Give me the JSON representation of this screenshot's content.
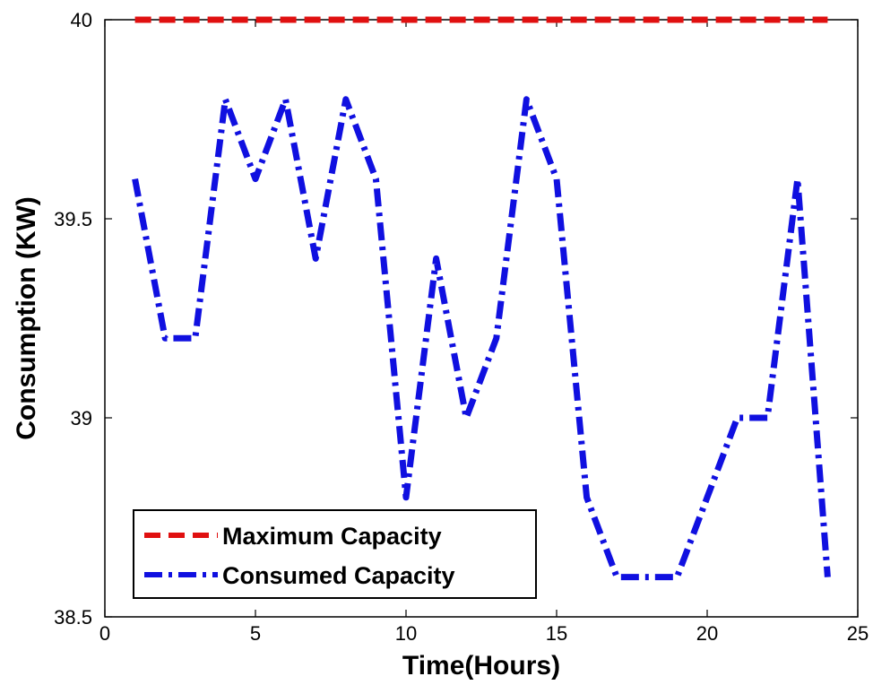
{
  "chart_data": {
    "type": "line",
    "title": "",
    "xlabel": "Time(Hours)",
    "ylabel": "Consumption (KW)",
    "xlim": [
      0,
      25
    ],
    "ylim": [
      38.5,
      40
    ],
    "x_ticks": [
      0,
      5,
      10,
      15,
      20,
      25
    ],
    "x_tick_labels": [
      "0",
      "5",
      "10",
      "15",
      "20",
      "25"
    ],
    "y_ticks": [
      38.5,
      39,
      39.5,
      40
    ],
    "y_tick_labels": [
      "38.5",
      "39",
      "39.5",
      "40"
    ],
    "grid": false,
    "legend_position": "bottom-left",
    "series": [
      {
        "name": "Maximum Capacity",
        "color": "#e01010",
        "line_style": "dashed",
        "x": [
          1,
          24
        ],
        "y": [
          40,
          40
        ]
      },
      {
        "name": "Consumed Capacity",
        "color": "#1010e0",
        "line_style": "dash-dot",
        "x": [
          1,
          2,
          3,
          4,
          5,
          6,
          7,
          8,
          9,
          10,
          11,
          12,
          13,
          14,
          15,
          16,
          17,
          18,
          19,
          20,
          21,
          22,
          23,
          24
        ],
        "y": [
          39.6,
          39.2,
          39.2,
          39.8,
          39.6,
          39.8,
          39.4,
          39.8,
          39.6,
          38.8,
          39.4,
          39.0,
          39.2,
          39.8,
          39.6,
          38.8,
          38.6,
          38.6,
          38.6,
          38.8,
          39.0,
          39.0,
          39.6,
          38.6
        ]
      }
    ]
  }
}
